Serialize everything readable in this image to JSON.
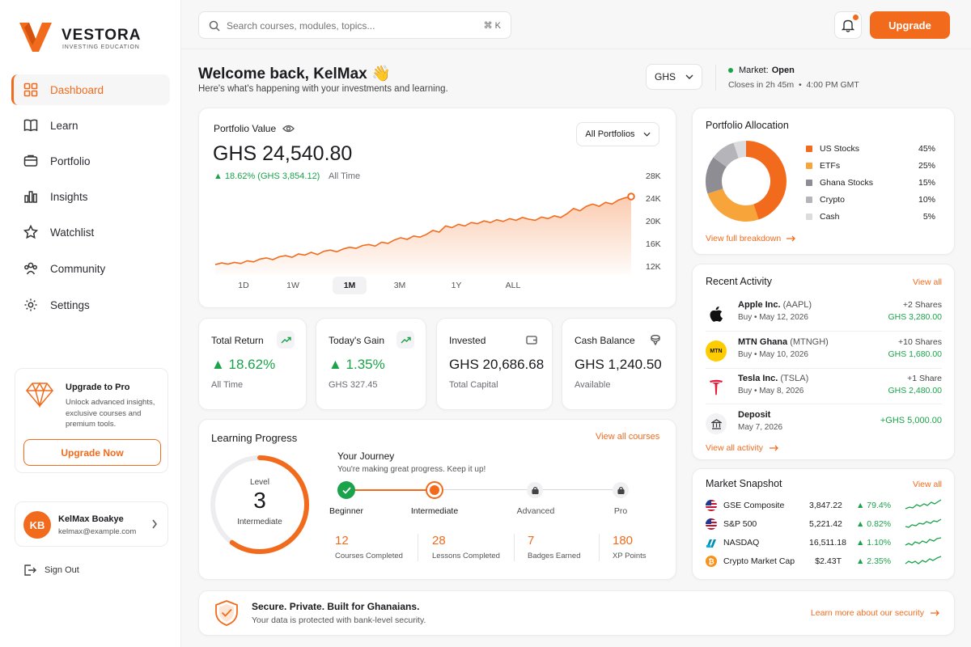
{
  "brand": {
    "name": "VESTORA",
    "tagline": "INVESTING EDUCATION",
    "accent": "#f26b1d"
  },
  "sidebar": {
    "items": [
      {
        "label": "Dashboard",
        "icon": "grid-icon",
        "active": true
      },
      {
        "label": "Learn",
        "icon": "book-icon"
      },
      {
        "label": "Portfolio",
        "icon": "briefcase-icon"
      },
      {
        "label": "Insights",
        "icon": "bar-chart-icon"
      },
      {
        "label": "Watchlist",
        "icon": "star-icon"
      },
      {
        "label": "Community",
        "icon": "users-icon"
      },
      {
        "label": "Settings",
        "icon": "gear-icon"
      }
    ],
    "promo": {
      "title": "Upgrade to Pro",
      "line1": "Unlock advanced insights,",
      "line2": "exclusive courses and",
      "line3": "premium tools.",
      "button": "Upgrade Now"
    },
    "user": {
      "initials": "KB",
      "name": "KelMax Boakye",
      "email": "kelmax@example.com"
    },
    "signout": "Sign Out"
  },
  "header": {
    "search_placeholder": "Search courses, modules, topics...",
    "shortcut": "⌘ K",
    "upgrade": "Upgrade"
  },
  "welcome": {
    "title": "Welcome back, KelMax 👋",
    "subtitle": "Here's what's happening with your investments and learning.",
    "currency": "GHS",
    "market_label": "Market:",
    "market_status": "Open",
    "market_close": "Closes in 2h 45m  •  4:00 PM GMT"
  },
  "portfolio": {
    "label": "Portfolio Value",
    "filter": "All Portfolios",
    "value": "GHS 24,540.80",
    "change": "▲ 18.62% (GHS 3,854.12)",
    "period": "All Time",
    "timeframes": [
      "1D",
      "1W",
      "1M",
      "3M",
      "1Y",
      "ALL"
    ],
    "active_timeframe": "1M"
  },
  "chart_data": {
    "type": "area",
    "yticks": [
      "28K",
      "24K",
      "20K",
      "16K",
      "12K"
    ],
    "ylim": [
      12000,
      28000
    ],
    "values": [
      12400,
      12700,
      12500,
      12800,
      12600,
      13100,
      12900,
      13400,
      13600,
      13300,
      13800,
      14000,
      13700,
      14300,
      14100,
      14600,
      14200,
      14800,
      15000,
      14700,
      15200,
      15500,
      15300,
      15800,
      16000,
      15700,
      16400,
      16200,
      16800,
      17200,
      16900,
      17500,
      17300,
      17800,
      18500,
      18200,
      19300,
      19000,
      19600,
      19300,
      19900,
      19700,
      20200,
      19900,
      20400,
      20100,
      20600,
      20300,
      20800,
      20500,
      20300,
      20900,
      20600,
      21100,
      20800,
      21500,
      22400,
      22000,
      22800,
      23200,
      22800,
      23500,
      23200,
      23900,
      24300,
      24540
    ]
  },
  "stats": [
    {
      "label": "Total Return",
      "value": "▲ 18.62%",
      "sub": "All Time",
      "icon": "trend-up-icon"
    },
    {
      "label": "Today's Gain",
      "value": "▲ 1.35%",
      "sub": "GHS 327.45",
      "icon": "trend-up-icon"
    },
    {
      "label": "Invested",
      "value": "GHS 20,686.68",
      "sub": "Total Capital",
      "icon": "wallet-icon"
    },
    {
      "label": "Cash Balance",
      "value": "GHS 1,240.50",
      "sub": "Available",
      "icon": "coins-icon"
    }
  ],
  "learning": {
    "title": "Learning Progress",
    "view_all": "View all courses",
    "level_label": "Level",
    "level": "3",
    "level_name": "Intermediate",
    "level_progress": 0.6,
    "journey_title": "Your Journey",
    "journey_sub": "You're making great progress. Keep it up!",
    "steps": [
      "Beginner",
      "Intermediate",
      "Advanced",
      "Pro"
    ],
    "metrics": [
      {
        "value": "12",
        "label": "Courses Completed"
      },
      {
        "value": "28",
        "label": "Lessons Completed"
      },
      {
        "value": "7",
        "label": "Badges Earned"
      },
      {
        "value": "180",
        "label": "XP Points"
      }
    ]
  },
  "allocation": {
    "title": "Portfolio Allocation",
    "link": "View full breakdown",
    "slices": [
      {
        "name": "US Stocks",
        "pct": "45%",
        "value": 45,
        "color": "#f26b1d"
      },
      {
        "name": "ETFs",
        "pct": "25%",
        "value": 25,
        "color": "#f7a53a"
      },
      {
        "name": "Ghana Stocks",
        "pct": "15%",
        "value": 15,
        "color": "#8d8d93"
      },
      {
        "name": "Crypto",
        "pct": "10%",
        "value": 10,
        "color": "#b4b4b9"
      },
      {
        "name": "Cash",
        "pct": "5%",
        "value": 5,
        "color": "#dcdcdf"
      }
    ]
  },
  "activity": {
    "title": "Recent Activity",
    "view_all": "View all",
    "items": [
      {
        "name": "Apple Inc.",
        "ticker": "(AAPL)",
        "sub": "Buy • May 12, 2026",
        "qty": "+2 Shares",
        "amount": "GHS 3,280.00"
      },
      {
        "name": "MTN Ghana",
        "ticker": "(MTNGH)",
        "sub": "Buy • May 10, 2026",
        "qty": "+10 Shares",
        "amount": "GHS 1,680.00",
        "logo": "MTN"
      },
      {
        "name": "Tesla Inc.",
        "ticker": "(TSLA)",
        "sub": "Buy • May 8, 2026",
        "qty": "+1 Share",
        "amount": "GHS 2,480.00"
      },
      {
        "name": "Deposit",
        "ticker": "",
        "sub": "May 7, 2026",
        "qty": "",
        "amount": "+GHS 5,000.00"
      }
    ],
    "link": "View all activity"
  },
  "market": {
    "title": "Market Snapshot",
    "view_all": "View all",
    "items": [
      {
        "name": "GSE Composite",
        "value": "3,847.22",
        "change": "▲ 79.4%",
        "icon": "us-flag-icon"
      },
      {
        "name": "S&P 500",
        "value": "5,221.42",
        "change": "▲ 0.82%",
        "icon": "us-flag-icon"
      },
      {
        "name": "NASDAQ",
        "value": "16,511.18",
        "change": "▲ 1.10%",
        "icon": "nasdaq-icon"
      },
      {
        "name": "Crypto Market Cap",
        "value": "$2.43T",
        "change": "▲ 2.35%",
        "icon": "bitcoin-icon"
      }
    ]
  },
  "footer": {
    "title": "Secure. Private. Built for Ghanaians.",
    "sub": "Your data is protected with bank-level security.",
    "link": "Learn more about our security"
  }
}
